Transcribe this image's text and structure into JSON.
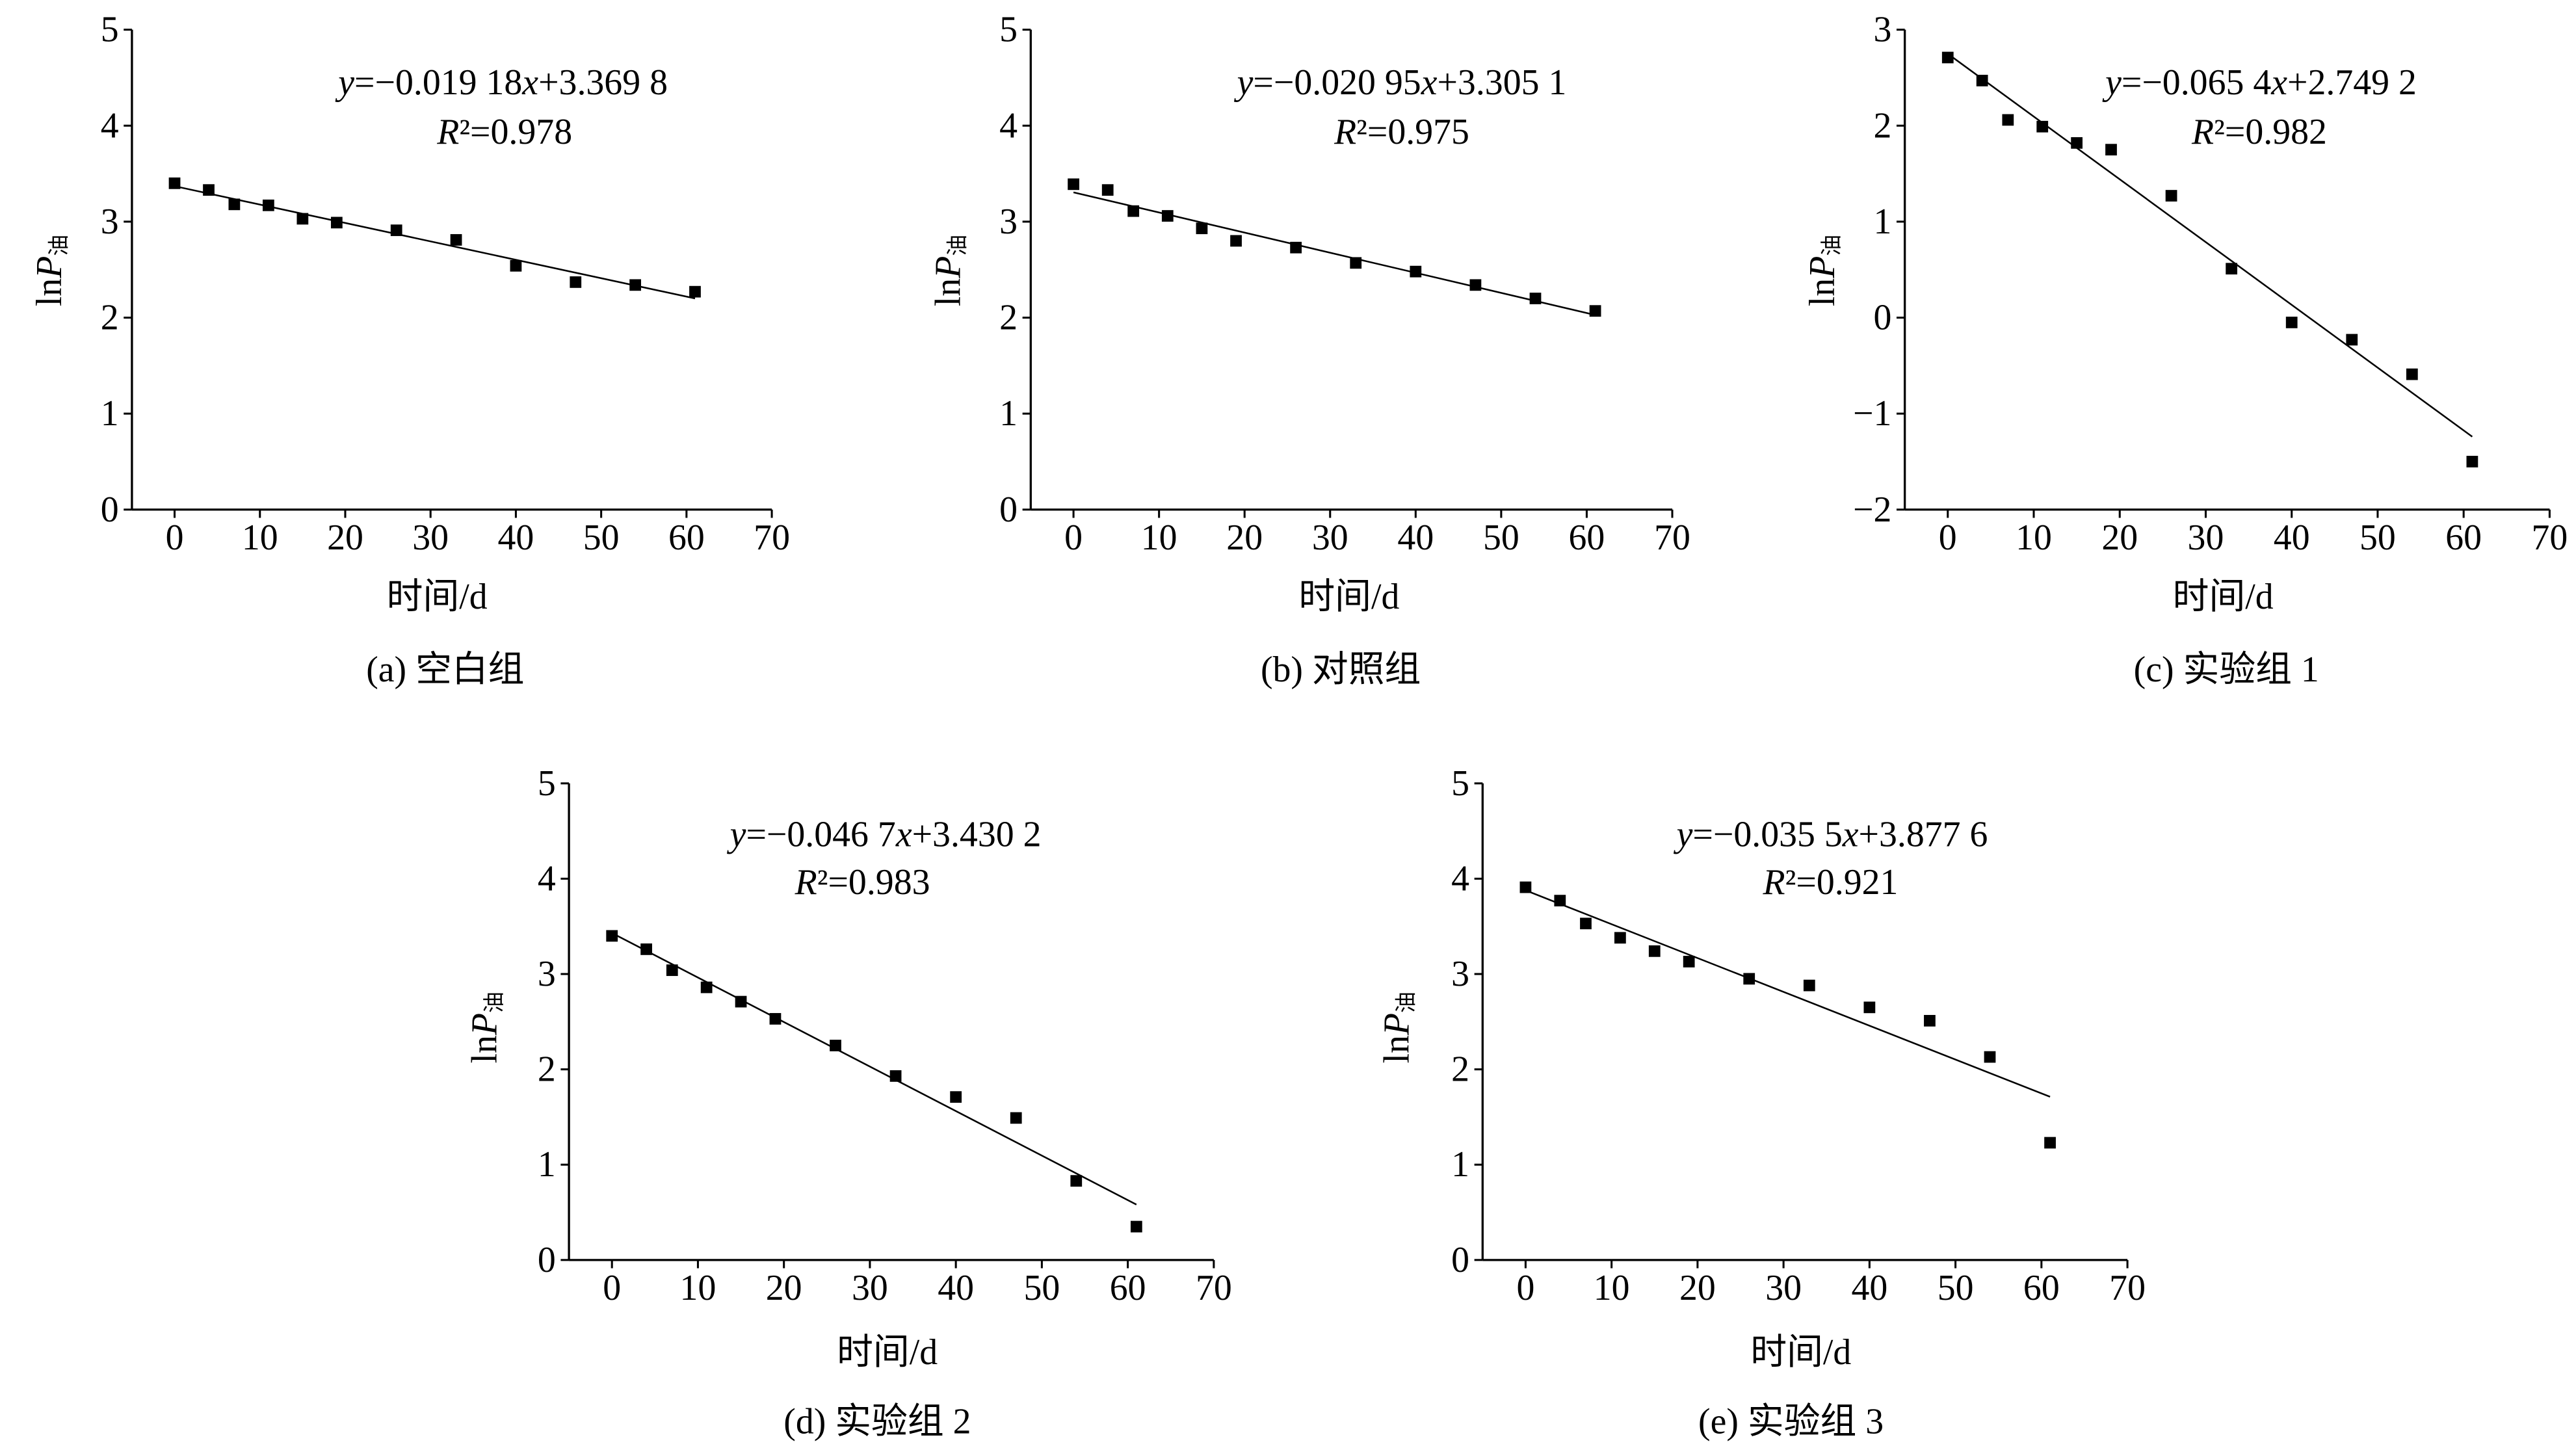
{
  "figure": {
    "background": "#ffffff",
    "ink": "#000000"
  },
  "chart_data": [
    {
      "type": "scatter",
      "caption": "(a) 空白组",
      "xlabel": "时间/d",
      "ylabel": "lnP油",
      "xlim": [
        -5,
        70
      ],
      "ylim": [
        0,
        5
      ],
      "xticks": [
        0,
        10,
        20,
        30,
        40,
        50,
        60,
        70
      ],
      "yticks": [
        0,
        1,
        2,
        3,
        4,
        5
      ],
      "grid": false,
      "x": [
        0,
        4,
        7,
        11,
        15,
        19,
        26,
        33,
        40,
        47,
        54,
        61
      ],
      "y": [
        3.4,
        3.33,
        3.18,
        3.17,
        3.03,
        2.99,
        2.91,
        2.81,
        2.54,
        2.37,
        2.34,
        2.27
      ],
      "fit": {
        "slope": -0.01918,
        "intercept": 3.3698,
        "x_range": [
          0,
          61
        ]
      },
      "equation": "y=−0.019 18x+3.369 8",
      "r2_label": "R²=0.978"
    },
    {
      "type": "scatter",
      "caption": "(b) 对照组",
      "xlabel": "时间/d",
      "ylabel": "lnP油",
      "xlim": [
        -5,
        70
      ],
      "ylim": [
        0,
        5
      ],
      "xticks": [
        0,
        10,
        20,
        30,
        40,
        50,
        60,
        70
      ],
      "yticks": [
        0,
        1,
        2,
        3,
        4,
        5
      ],
      "grid": false,
      "x": [
        0,
        4,
        7,
        11,
        15,
        19,
        26,
        33,
        40,
        47,
        54,
        61
      ],
      "y": [
        3.39,
        3.33,
        3.11,
        3.06,
        2.93,
        2.8,
        2.73,
        2.57,
        2.48,
        2.34,
        2.2,
        2.07
      ],
      "fit": {
        "slope": -0.02095,
        "intercept": 3.3051,
        "x_range": [
          0,
          61
        ]
      },
      "equation": "y=−0.020 95x+3.305 1",
      "r2_label": "R²=0.975"
    },
    {
      "type": "scatter",
      "caption": "(c) 实验组 1",
      "xlabel": "时间/d",
      "ylabel": "lnP油",
      "xlim": [
        -5,
        70
      ],
      "ylim": [
        -2,
        3
      ],
      "xticks": [
        0,
        10,
        20,
        30,
        40,
        50,
        60,
        70
      ],
      "yticks": [
        -2,
        -1,
        0,
        1,
        2,
        3
      ],
      "grid": false,
      "x": [
        0,
        4,
        7,
        11,
        15,
        19,
        26,
        33,
        40,
        47,
        54,
        61
      ],
      "y": [
        2.71,
        2.47,
        2.06,
        1.99,
        1.82,
        1.75,
        1.27,
        0.51,
        -0.05,
        -0.23,
        -0.59,
        -1.5
      ],
      "fit": {
        "slope": -0.0654,
        "intercept": 2.7492,
        "x_range": [
          0,
          61
        ]
      },
      "equation": "y=−0.065 4x+2.749 2",
      "r2_label": "R²=0.982"
    },
    {
      "type": "scatter",
      "caption": "(d) 实验组 2",
      "xlabel": "时间/d",
      "ylabel": "lnP油",
      "xlim": [
        -5,
        70
      ],
      "ylim": [
        0,
        5
      ],
      "xticks": [
        0,
        10,
        20,
        30,
        40,
        50,
        60,
        70
      ],
      "yticks": [
        0,
        1,
        2,
        3,
        4,
        5
      ],
      "grid": false,
      "x": [
        0,
        4,
        7,
        11,
        15,
        19,
        26,
        33,
        40,
        47,
        54,
        61
      ],
      "y": [
        3.4,
        3.26,
        3.04,
        2.86,
        2.71,
        2.53,
        2.25,
        1.93,
        1.71,
        1.49,
        0.83,
        0.35
      ],
      "fit": {
        "slope": -0.0467,
        "intercept": 3.4302,
        "x_range": [
          0,
          61
        ]
      },
      "equation": "y=−0.046 7x+3.430 2",
      "r2_label": "R²=0.983"
    },
    {
      "type": "scatter",
      "caption": "(e) 实验组 3",
      "xlabel": "时间/d",
      "ylabel": "lnP油",
      "xlim": [
        -5,
        70
      ],
      "ylim": [
        0,
        5
      ],
      "xticks": [
        0,
        10,
        20,
        30,
        40,
        50,
        60,
        70
      ],
      "yticks": [
        0,
        1,
        2,
        3,
        4,
        5
      ],
      "grid": false,
      "x": [
        0,
        4,
        7,
        11,
        15,
        19,
        26,
        33,
        40,
        47,
        54,
        61
      ],
      "y": [
        3.91,
        3.77,
        3.53,
        3.38,
        3.24,
        3.13,
        2.95,
        2.88,
        2.65,
        2.51,
        2.13,
        1.23
      ],
      "fit": {
        "slope": -0.0355,
        "intercept": 3.8776,
        "x_range": [
          0,
          61
        ]
      },
      "equation": "y=−0.035 5x+3.877 6",
      "r2_label": "R²=0.921"
    }
  ]
}
